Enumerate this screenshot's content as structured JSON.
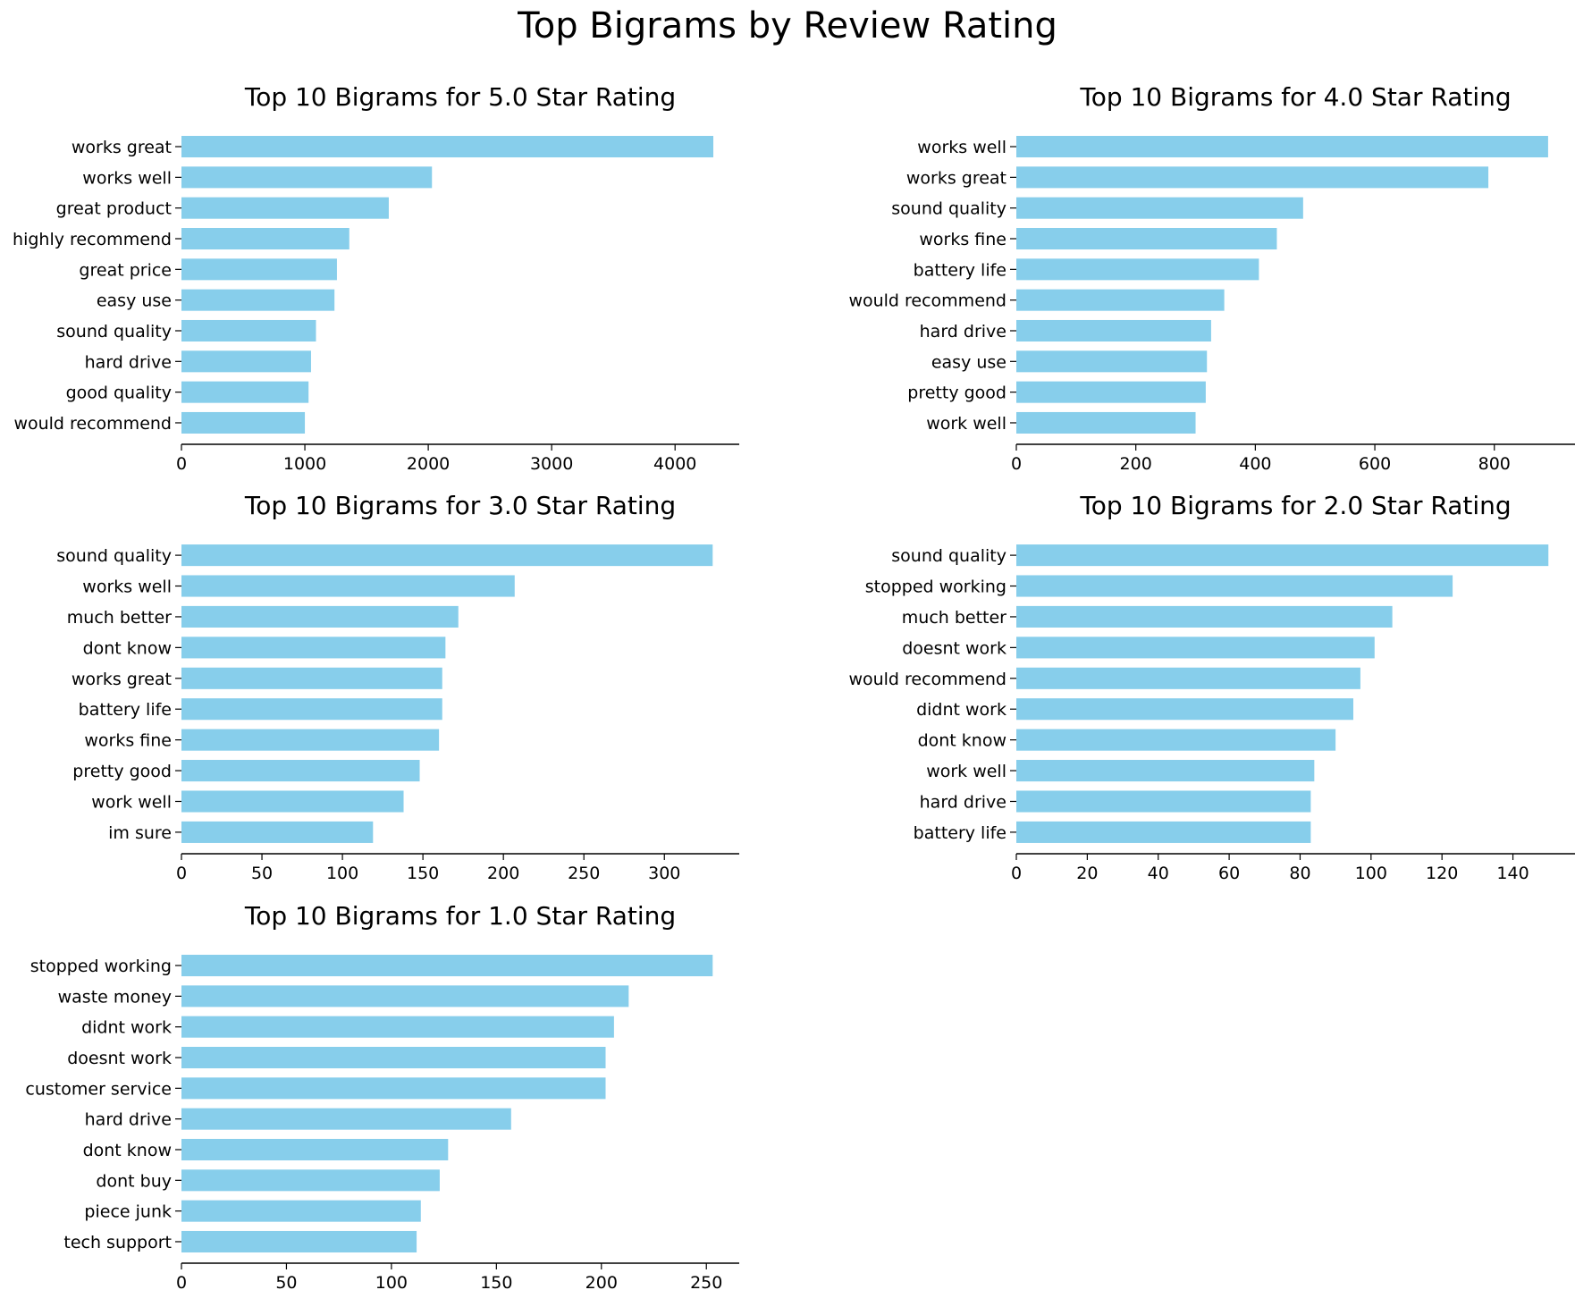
{
  "figure": {
    "title": "Top Bigrams by Review Rating"
  },
  "colors": {
    "bar": "#87CEEB",
    "axis": "#000000",
    "background": "#ffffff"
  },
  "chart_data": [
    {
      "type": "bar",
      "orientation": "horizontal",
      "title": "Top 10 Bigrams for 5.0 Star Rating",
      "categories": [
        "works great",
        "works well",
        "great product",
        "highly recommend",
        "great price",
        "easy use",
        "sound quality",
        "hard drive",
        "good quality",
        "would recommend"
      ],
      "values": [
        4310,
        2030,
        1680,
        1360,
        1260,
        1240,
        1090,
        1050,
        1030,
        1000
      ],
      "xlim": [
        0,
        4520
      ],
      "xticks": [
        0,
        1000,
        2000,
        3000,
        4000
      ],
      "xlabel": "",
      "ylabel": "",
      "grid": false
    },
    {
      "type": "bar",
      "orientation": "horizontal",
      "title": "Top 10 Bigrams for 4.0 Star Rating",
      "categories": [
        "works well",
        "works great",
        "sound quality",
        "works fine",
        "battery life",
        "would recommend",
        "hard drive",
        "easy use",
        "pretty good",
        "work well"
      ],
      "values": [
        890,
        790,
        480,
        436,
        406,
        348,
        326,
        319,
        317,
        300
      ],
      "xlim": [
        0,
        935
      ],
      "xticks": [
        0,
        200,
        400,
        600,
        800
      ],
      "xlabel": "",
      "ylabel": "",
      "grid": false
    },
    {
      "type": "bar",
      "orientation": "horizontal",
      "title": "Top 10 Bigrams for 3.0 Star Rating",
      "categories": [
        "sound quality",
        "works well",
        "much better",
        "dont know",
        "works great",
        "battery life",
        "works fine",
        "pretty good",
        "work well",
        "im sure"
      ],
      "values": [
        330,
        207,
        172,
        164,
        162,
        162,
        160,
        148,
        138,
        119
      ],
      "xlim": [
        0,
        346.5
      ],
      "xticks": [
        0,
        50,
        100,
        150,
        200,
        250,
        300
      ],
      "xlabel": "",
      "ylabel": "",
      "grid": false
    },
    {
      "type": "bar",
      "orientation": "horizontal",
      "title": "Top 10 Bigrams for 2.0 Star Rating",
      "categories": [
        "sound quality",
        "stopped working",
        "much better",
        "doesnt work",
        "would recommend",
        "didnt work",
        "dont know",
        "work well",
        "hard drive",
        "battery life"
      ],
      "values": [
        150,
        123,
        106,
        101,
        97,
        95,
        90,
        84,
        83,
        83
      ],
      "xlim": [
        0,
        157.5
      ],
      "xticks": [
        0,
        20,
        40,
        60,
        80,
        100,
        120,
        140
      ],
      "xlabel": "",
      "ylabel": "",
      "grid": false
    },
    {
      "type": "bar",
      "orientation": "horizontal",
      "title": "Top 10 Bigrams for 1.0 Star Rating",
      "categories": [
        "stopped working",
        "waste money",
        "didnt work",
        "doesnt work",
        "customer service",
        "hard drive",
        "dont know",
        "dont buy",
        "piece junk",
        "tech support"
      ],
      "values": [
        253,
        213,
        206,
        202,
        202,
        157,
        127,
        123,
        114,
        112
      ],
      "xlim": [
        0,
        265.65
      ],
      "xticks": [
        0,
        50,
        100,
        150,
        200,
        250
      ],
      "xlabel": "",
      "ylabel": "",
      "grid": false
    }
  ]
}
